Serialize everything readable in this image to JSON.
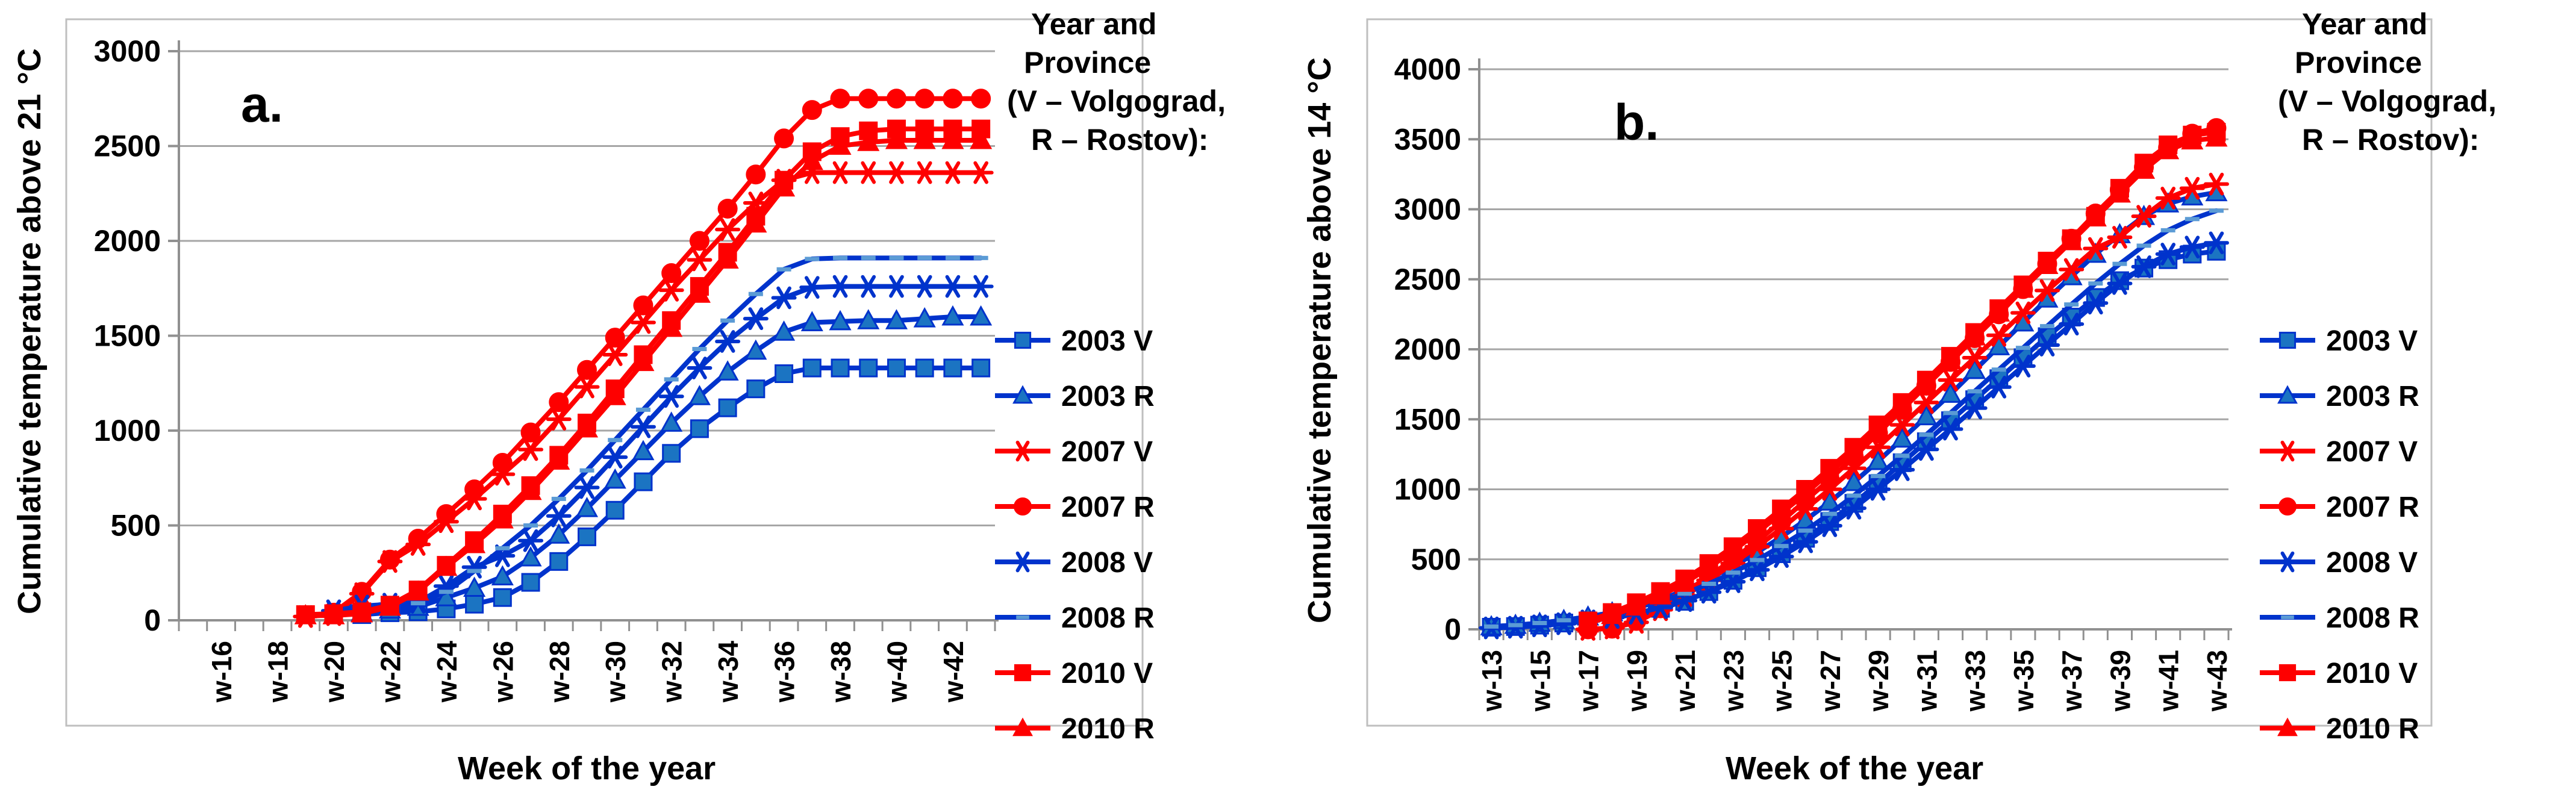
{
  "figure": {
    "panel_a_letter": "a.",
    "panel_b_letter": "b.",
    "background": "#ffffff"
  },
  "legend": {
    "title_lines": [
      "Year and",
      "Province",
      "(V – Volgograd,",
      "R – Rostov):"
    ],
    "entries": [
      {
        "label": "2003 V",
        "color": "#0033CC",
        "marker": "square",
        "marker_fill": "#1B74C2"
      },
      {
        "label": "2003 R",
        "color": "#0033CC",
        "marker": "triangle",
        "marker_fill": "#1B74C2"
      },
      {
        "label": "2007 V",
        "color": "#FE0000",
        "marker": "asterisk",
        "marker_fill": "#FE0000"
      },
      {
        "label": "2007 R",
        "color": "#FE0000",
        "marker": "circle",
        "marker_fill": "#FE0000"
      },
      {
        "label": "2008 V",
        "color": "#0033CC",
        "marker": "asterisk",
        "marker_fill": "#1B74C2"
      },
      {
        "label": "2008 R",
        "color": "#0033CC",
        "marker": "dash",
        "marker_fill": "#5B9BD5"
      },
      {
        "label": "2010 V",
        "color": "#FE0000",
        "marker": "square",
        "marker_fill": "#FE0000"
      },
      {
        "label": "2010 R",
        "color": "#FE0000",
        "marker": "triangle",
        "marker_fill": "#FE0000"
      }
    ]
  },
  "colors": {
    "grid": "#A6A6A6",
    "axis": "#909090",
    "frame": "#BFBFBF",
    "blue_line": "#0033CC",
    "blue_marker_fill": "#1B74C2",
    "red": "#FE0000"
  },
  "chart_data": [
    {
      "type": "line",
      "panel": "a.",
      "ylabel": "Cumulative temperature above 21 °C",
      "xlabel": "Week of the year",
      "ylim": [
        0,
        3000
      ],
      "ytick_labels": [
        "0",
        "500",
        "1000",
        "1500",
        "2000",
        "2500",
        "3000"
      ],
      "weeks_start": 15,
      "weeks_end": 43,
      "xtick_labels": [
        "w-16",
        "w-18",
        "w-20",
        "w-22",
        "w-24",
        "w-26",
        "w-28",
        "w-30",
        "w-32",
        "w-34",
        "w-36",
        "w-38",
        "w-40",
        "w-42"
      ],
      "xtick_label_weeks": [
        16,
        18,
        20,
        22,
        24,
        26,
        28,
        30,
        32,
        34,
        36,
        38,
        40,
        42
      ],
      "grid": true,
      "legend_position": "right",
      "series": [
        {
          "name": "2003 V",
          "marker": "square",
          "color": "#0033CC",
          "marker_fill": "#1B74C2",
          "start_week": 21,
          "values": [
            30,
            40,
            45,
            60,
            85,
            120,
            200,
            310,
            440,
            580,
            730,
            880,
            1010,
            1120,
            1220,
            1300,
            1330,
            1330,
            1330,
            1330,
            1330,
            1330,
            1330
          ]
        },
        {
          "name": "2003 R",
          "marker": "triangle",
          "color": "#0033CC",
          "marker_fill": "#1B74C2",
          "start_week": 21,
          "values": [
            40,
            55,
            70,
            120,
            170,
            230,
            330,
            450,
            590,
            740,
            890,
            1040,
            1180,
            1310,
            1420,
            1520,
            1570,
            1575,
            1580,
            1580,
            1590,
            1600,
            1600
          ]
        },
        {
          "name": "2007 V",
          "marker": "asterisk",
          "color": "#FE0000",
          "marker_fill": "#FE0000",
          "start_week": 19,
          "values": [
            20,
            30,
            140,
            310,
            400,
            520,
            640,
            770,
            900,
            1060,
            1230,
            1400,
            1570,
            1740,
            1900,
            2060,
            2200,
            2320,
            2360,
            2360,
            2360,
            2360,
            2360,
            2360,
            2360
          ]
        },
        {
          "name": "2007 R",
          "marker": "circle",
          "color": "#FE0000",
          "marker_fill": "#FE0000",
          "start_week": 20,
          "values": [
            40,
            150,
            320,
            430,
            560,
            690,
            830,
            990,
            1150,
            1320,
            1490,
            1660,
            1830,
            2000,
            2170,
            2350,
            2540,
            2690,
            2750,
            2750,
            2750,
            2750,
            2750,
            2750
          ]
        },
        {
          "name": "2008 V",
          "marker": "asterisk",
          "color": "#0033CC",
          "marker_fill": "#1B74C2",
          "start_week": 20,
          "values": [
            50,
            75,
            85,
            95,
            180,
            280,
            340,
            420,
            550,
            700,
            860,
            1020,
            1180,
            1330,
            1470,
            1590,
            1700,
            1755,
            1760,
            1760,
            1760,
            1760,
            1760,
            1760
          ]
        },
        {
          "name": "2008 R",
          "marker": "dash",
          "color": "#0033CC",
          "marker_fill": "#5B9BD5",
          "start_week": 21,
          "values": [
            60,
            75,
            90,
            150,
            260,
            380,
            500,
            640,
            790,
            950,
            1110,
            1270,
            1430,
            1580,
            1720,
            1850,
            1905,
            1910,
            1910,
            1910,
            1910,
            1910,
            1910
          ]
        },
        {
          "name": "2010 V",
          "marker": "square",
          "color": "#FE0000",
          "marker_fill": "#FE0000",
          "start_week": 19,
          "values": [
            30,
            35,
            45,
            80,
            160,
            290,
            420,
            560,
            710,
            870,
            1040,
            1220,
            1400,
            1580,
            1760,
            1940,
            2130,
            2320,
            2470,
            2550,
            2580,
            2590,
            2590,
            2590,
            2590
          ]
        },
        {
          "name": "2010 R",
          "marker": "triangle",
          "color": "#FE0000",
          "marker_fill": "#FE0000",
          "start_week": 19,
          "values": [
            25,
            25,
            35,
            70,
            150,
            280,
            400,
            530,
            680,
            840,
            1010,
            1180,
            1360,
            1540,
            1720,
            1900,
            2090,
            2280,
            2420,
            2500,
            2520,
            2530,
            2530,
            2530,
            2530
          ]
        }
      ]
    },
    {
      "type": "line",
      "panel": "b.",
      "ylabel": "Cumulative temperature above 14 °C",
      "xlabel": "Week of the year",
      "ylim": [
        0,
        4000
      ],
      "ytick_labels": [
        "0",
        "500",
        "1000",
        "1500",
        "2000",
        "2500",
        "3000",
        "3500",
        "4000"
      ],
      "weeks_start": 13,
      "weeks_end": 43,
      "xtick_labels": [
        "w-13",
        "w-15",
        "w-17",
        "w-19",
        "w-21",
        "w-23",
        "w-25",
        "w-27",
        "w-29",
        "w-31",
        "w-33",
        "w-35",
        "w-37",
        "w-39",
        "w-41",
        "w-43"
      ],
      "xtick_label_weeks": [
        13,
        15,
        17,
        19,
        21,
        23,
        25,
        27,
        29,
        31,
        33,
        35,
        37,
        39,
        41,
        43
      ],
      "grid": true,
      "legend_position": "right",
      "series": [
        {
          "name": "2003 V",
          "marker": "square",
          "color": "#0033CC",
          "marker_fill": "#1B74C2",
          "start_week": 13,
          "values": [
            15,
            20,
            30,
            45,
            60,
            80,
            110,
            150,
            200,
            270,
            350,
            440,
            540,
            650,
            770,
            900,
            1040,
            1190,
            1340,
            1490,
            1640,
            1790,
            1940,
            2090,
            2230,
            2370,
            2490,
            2580,
            2640,
            2680,
            2700
          ]
        },
        {
          "name": "2003 R",
          "marker": "triangle",
          "color": "#0033CC",
          "marker_fill": "#1B74C2",
          "start_week": 13,
          "values": [
            20,
            30,
            45,
            65,
            90,
            120,
            160,
            210,
            280,
            360,
            450,
            550,
            660,
            780,
            910,
            1050,
            1200,
            1360,
            1520,
            1680,
            1850,
            2020,
            2190,
            2360,
            2520,
            2680,
            2820,
            2950,
            3040,
            3090,
            3120
          ]
        },
        {
          "name": "2007 V",
          "marker": "asterisk",
          "color": "#FE0000",
          "marker_fill": "#FE0000",
          "start_week": 17,
          "values": [
            0,
            10,
            50,
            140,
            240,
            350,
            470,
            590,
            720,
            860,
            1000,
            1150,
            1300,
            1460,
            1620,
            1780,
            1940,
            2100,
            2260,
            2420,
            2570,
            2720,
            2800,
            2950,
            3080,
            3150,
            3180
          ]
        },
        {
          "name": "2007 R",
          "marker": "circle",
          "color": "#FE0000",
          "marker_fill": "#FE0000",
          "start_week": 17,
          "values": [
            0,
            5,
            60,
            150,
            260,
            380,
            500,
            630,
            770,
            920,
            1070,
            1230,
            1400,
            1570,
            1740,
            1910,
            2080,
            2250,
            2430,
            2610,
            2790,
            2970,
            3140,
            3300,
            3440,
            3540,
            3580
          ]
        },
        {
          "name": "2008 V",
          "marker": "asterisk",
          "color": "#0033CC",
          "marker_fill": "#1B74C2",
          "start_week": 13,
          "values": [
            10,
            15,
            25,
            40,
            60,
            85,
            115,
            155,
            205,
            265,
            340,
            425,
            520,
            625,
            740,
            865,
            1000,
            1140,
            1285,
            1430,
            1580,
            1730,
            1880,
            2030,
            2180,
            2330,
            2470,
            2590,
            2680,
            2730,
            2760
          ]
        },
        {
          "name": "2008 R",
          "marker": "dash",
          "color": "#0033CC",
          "marker_fill": "#5B9BD5",
          "start_week": 13,
          "values": [
            20,
            30,
            45,
            65,
            90,
            120,
            155,
            200,
            255,
            325,
            405,
            495,
            595,
            705,
            825,
            955,
            1095,
            1240,
            1390,
            1545,
            1700,
            1855,
            2010,
            2165,
            2320,
            2470,
            2610,
            2740,
            2850,
            2930,
            2990
          ]
        },
        {
          "name": "2010 V",
          "marker": "square",
          "color": "#FE0000",
          "marker_fill": "#FE0000",
          "start_week": 17,
          "values": [
            60,
            120,
            190,
            270,
            360,
            470,
            590,
            720,
            860,
            1000,
            1150,
            1300,
            1460,
            1620,
            1780,
            1950,
            2120,
            2290,
            2460,
            2630,
            2790,
            2950,
            3150,
            3330,
            3460,
            3530,
            3550
          ]
        },
        {
          "name": "2010 R",
          "marker": "triangle",
          "color": "#FE0000",
          "marker_fill": "#FE0000",
          "start_week": 17,
          "values": [
            40,
            100,
            160,
            240,
            330,
            440,
            560,
            690,
            830,
            970,
            1120,
            1270,
            1430,
            1590,
            1750,
            1920,
            2090,
            2260,
            2430,
            2600,
            2770,
            2940,
            3110,
            3280,
            3420,
            3490,
            3510
          ]
        }
      ]
    }
  ]
}
